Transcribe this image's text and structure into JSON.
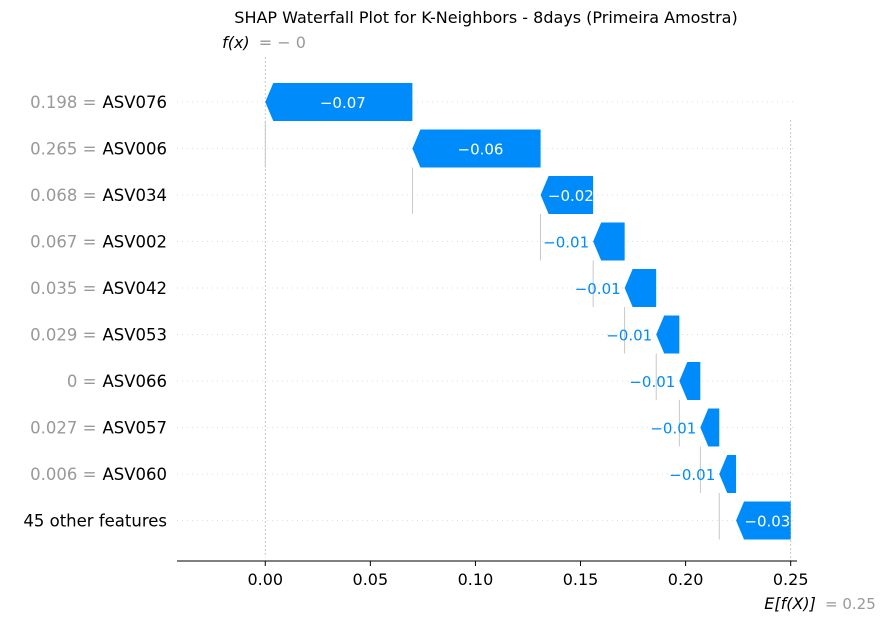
{
  "chart_data": {
    "type": "waterfall",
    "title": "SHAP Waterfall Plot for K-Neighbors - 8days (Primeira Amostra)",
    "fx_label": "f(x)",
    "fx_value_text": "= − 0",
    "ex_label": "E[f(X)]",
    "ex_value_text": "= 0.25",
    "base_value": 0.25,
    "output_value": 0,
    "xlim": [
      -0.042,
      0.253
    ],
    "xticks": [
      {
        "value": 0.0,
        "label": "0.00"
      },
      {
        "value": 0.05,
        "label": "0.05"
      },
      {
        "value": 0.1,
        "label": "0.10"
      },
      {
        "value": 0.15,
        "label": "0.15"
      },
      {
        "value": 0.2,
        "label": "0.20"
      },
      {
        "value": 0.25,
        "label": "0.25"
      }
    ],
    "negative_color": "#008bfb",
    "grid": "dotted horizontal",
    "features": [
      {
        "value": "0.198 =",
        "name": "ASV076",
        "start": 0.07,
        "end": 0.0,
        "label": "−0.07"
      },
      {
        "value": "0.265 =",
        "name": "ASV006",
        "start": 0.131,
        "end": 0.07,
        "label": "−0.06"
      },
      {
        "value": "0.068 =",
        "name": "ASV034",
        "start": 0.156,
        "end": 0.131,
        "label": "−0.02"
      },
      {
        "value": "0.067 =",
        "name": "ASV002",
        "start": 0.171,
        "end": 0.156,
        "label": "−0.01"
      },
      {
        "value": "0.035 =",
        "name": "ASV042",
        "start": 0.186,
        "end": 0.171,
        "label": "−0.01"
      },
      {
        "value": "0.029 =",
        "name": "ASV053",
        "start": 0.197,
        "end": 0.186,
        "label": "−0.01"
      },
      {
        "value": "0 =",
        "name": "ASV066",
        "start": 0.207,
        "end": 0.197,
        "label": "−0.01"
      },
      {
        "value": "0.027 =",
        "name": "ASV057",
        "start": 0.216,
        "end": 0.207,
        "label": "−0.01"
      },
      {
        "value": "0.006 =",
        "name": "ASV060",
        "start": 0.224,
        "end": 0.216,
        "label": "−0.01"
      },
      {
        "value": "",
        "name": "45 other features",
        "start": 0.25,
        "end": 0.224,
        "label": "−0.03"
      }
    ]
  }
}
